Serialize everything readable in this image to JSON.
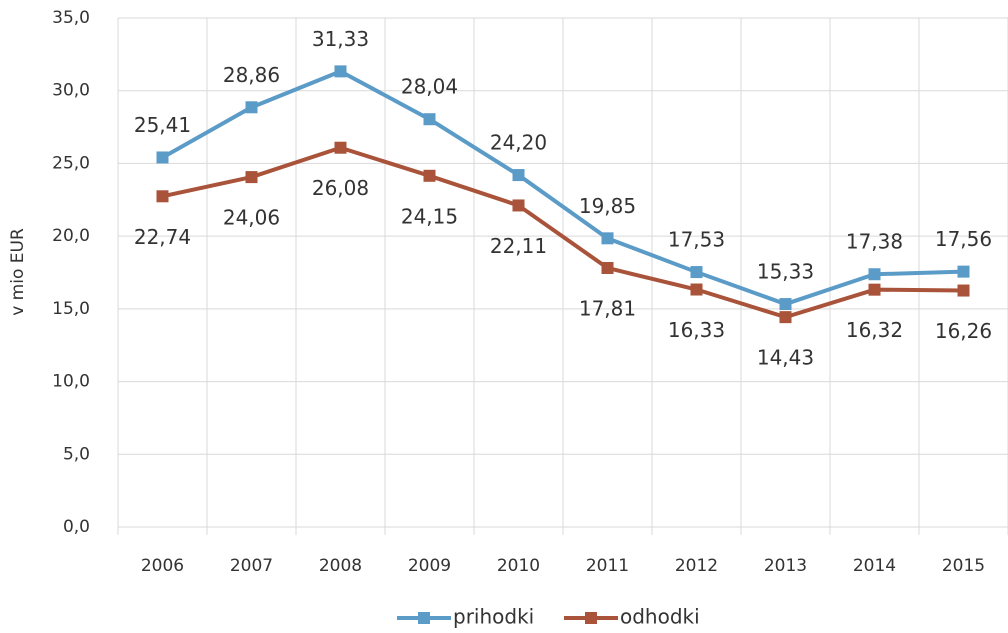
{
  "chart_data": {
    "type": "line",
    "ylabel": "v mio EUR",
    "categories": [
      "2006",
      "2007",
      "2008",
      "2009",
      "2010",
      "2011",
      "2012",
      "2013",
      "2014",
      "2015"
    ],
    "series": [
      {
        "name": "prihodki",
        "color": "#5b9bc8",
        "values": [
          25.41,
          28.86,
          31.33,
          28.04,
          24.2,
          19.85,
          17.53,
          15.33,
          17.38,
          17.56
        ],
        "value_labels": [
          "25,41",
          "28,86",
          "31,33",
          "28,04",
          "24,20",
          "19,85",
          "17,53",
          "15,33",
          "17,38",
          "17,56"
        ]
      },
      {
        "name": "odhodki",
        "color": "#a9533a",
        "values": [
          22.74,
          24.06,
          26.08,
          24.15,
          22.11,
          17.81,
          16.33,
          14.43,
          16.32,
          16.26
        ],
        "value_labels": [
          "22,74",
          "24,06",
          "26,08",
          "24,15",
          "22,11",
          "17,81",
          "16,33",
          "14,43",
          "16,32",
          "16,26"
        ]
      }
    ],
    "ylim": [
      0,
      35
    ],
    "yticks": [
      {
        "value": 0,
        "label": "0,0"
      },
      {
        "value": 5,
        "label": "5,0"
      },
      {
        "value": 10,
        "label": "10,0"
      },
      {
        "value": 15,
        "label": "15,0"
      },
      {
        "value": 20,
        "label": "20,0"
      },
      {
        "value": 25,
        "label": "25,0"
      },
      {
        "value": 30,
        "label": "30,0"
      },
      {
        "value": 35,
        "label": "35,0"
      }
    ],
    "grid": true,
    "legend": "bottom"
  }
}
